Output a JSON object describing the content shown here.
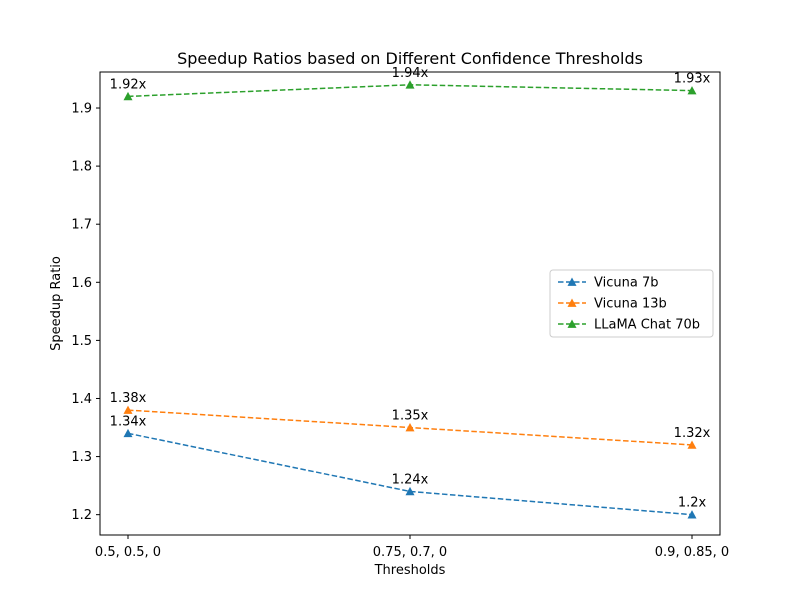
{
  "chart_data": {
    "type": "line",
    "title": "Speedup Ratios based on Different Confidence Thresholds",
    "xlabel": "Thresholds",
    "ylabel": "Speedup Ratio",
    "categories": [
      "0.5, 0.5, 0",
      "0.75, 0.7, 0",
      "0.9, 0.85, 0"
    ],
    "ylim": [
      1.165,
      1.962
    ],
    "yticks": [
      1.2,
      1.3,
      1.4,
      1.5,
      1.6,
      1.7,
      1.8,
      1.9
    ],
    "ytick_labels": [
      "1.2",
      "1.3",
      "1.4",
      "1.5",
      "1.6",
      "1.7",
      "1.8",
      "1.9"
    ],
    "grid": false,
    "legend_position": "center-right",
    "series": [
      {
        "name": "Vicuna 7b",
        "color": "#1f77b4",
        "values": [
          1.34,
          1.24,
          1.2
        ],
        "labels": [
          "1.34x",
          "1.24x",
          "1.2x"
        ]
      },
      {
        "name": "Vicuna 13b",
        "color": "#ff7f0e",
        "values": [
          1.38,
          1.35,
          1.32
        ],
        "labels": [
          "1.38x",
          "1.35x",
          "1.32x"
        ]
      },
      {
        "name": "LLaMA Chat 70b",
        "color": "#2ca02c",
        "values": [
          1.92,
          1.94,
          1.93
        ],
        "labels": [
          "1.92x",
          "1.94x",
          "1.93x"
        ]
      }
    ]
  }
}
